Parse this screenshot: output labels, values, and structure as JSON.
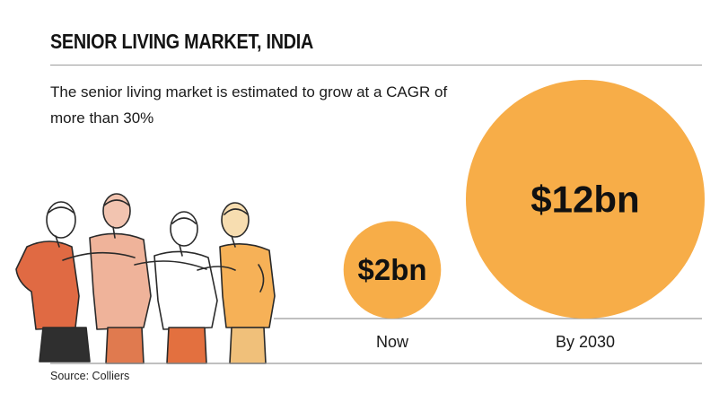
{
  "header": {
    "title": "SENIOR LIVING MARKET, INDIA",
    "subtitle": "The senior living market is estimated to grow at a CAGR of more than 30%"
  },
  "footer": {
    "source": "Source: Colliers"
  },
  "colors": {
    "bubble_fill": "#f7ad48",
    "rule": "#9a9a9a",
    "text": "#111111"
  },
  "chart_data": {
    "type": "bubble",
    "title": "SENIOR LIVING MARKET, INDIA",
    "subtitle": "The senior living market is estimated to grow at a CAGR of more than 30%",
    "categories": [
      "Now",
      "By 2030"
    ],
    "values": [
      2,
      12
    ],
    "value_labels": [
      "$2bn",
      "$12bn"
    ],
    "unit": "$bn",
    "note": "",
    "source": "Source: Colliers"
  }
}
